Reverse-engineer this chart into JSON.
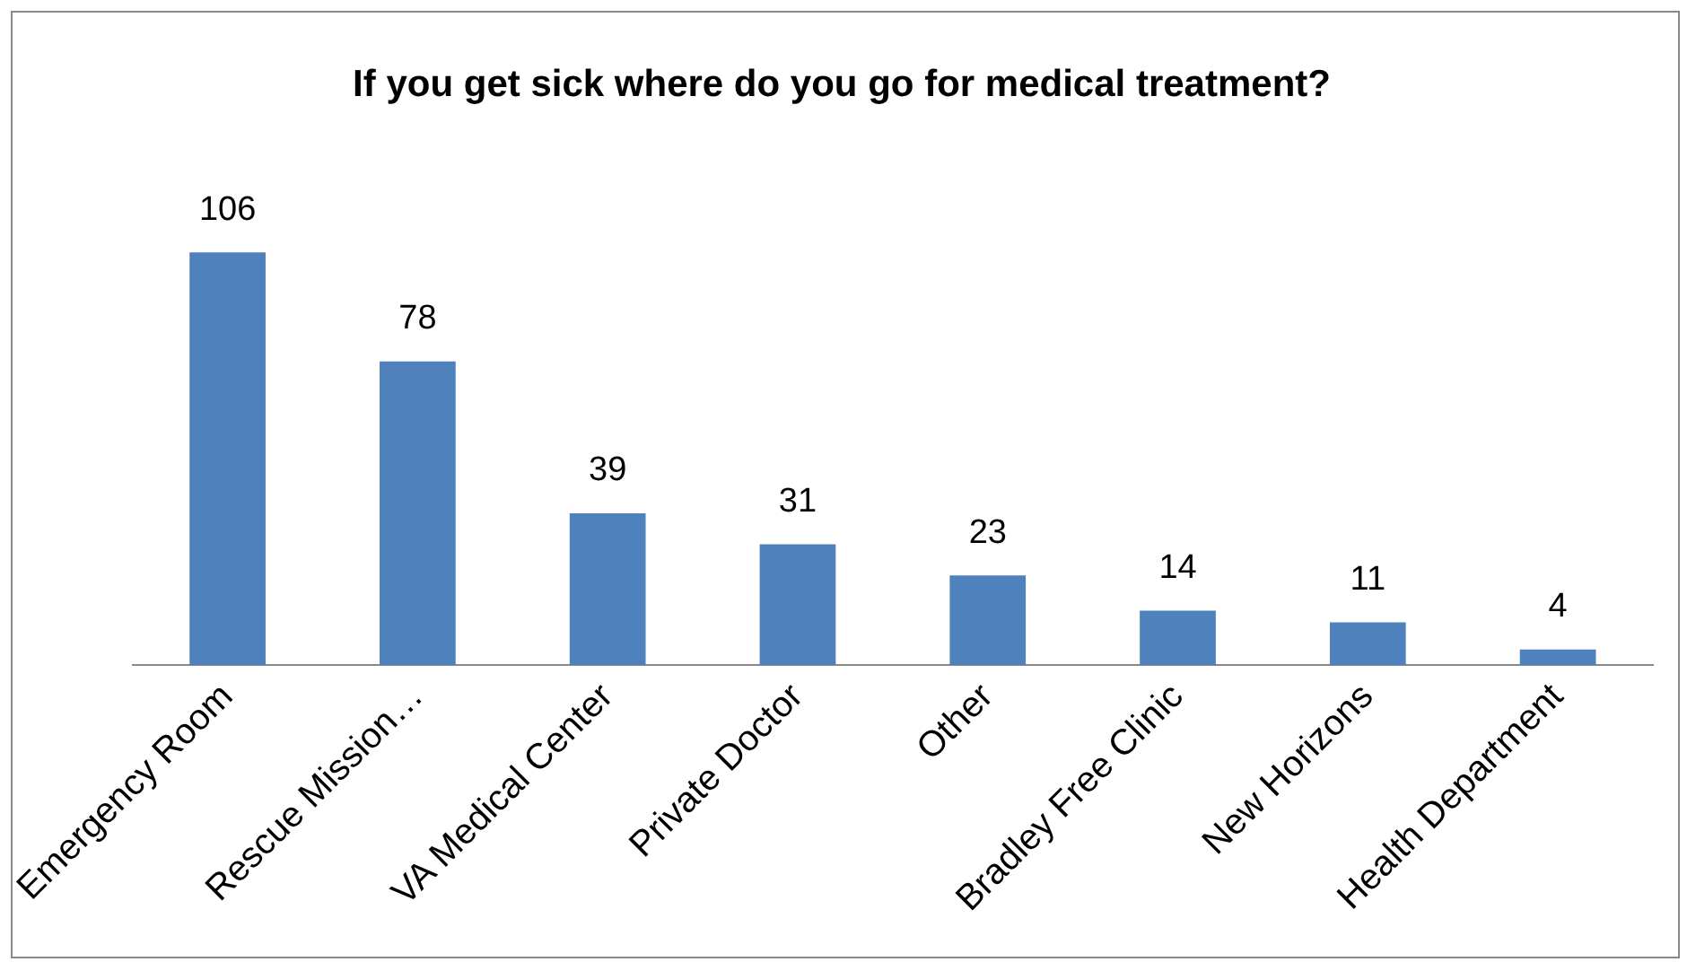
{
  "chart_data": {
    "type": "bar",
    "title": "If you get sick where do you go for medical treatment?",
    "categories": [
      "Emergency Room",
      "Rescue Mission…",
      "VA Medical Center",
      "Private Doctor",
      "Other",
      "Bradley Free Clinic",
      "New Horizons",
      "Health Department"
    ],
    "values": [
      106,
      78,
      39,
      31,
      23,
      14,
      11,
      4
    ],
    "color": "#4f81bd",
    "data_labels": true,
    "grid": false,
    "legend": false
  }
}
